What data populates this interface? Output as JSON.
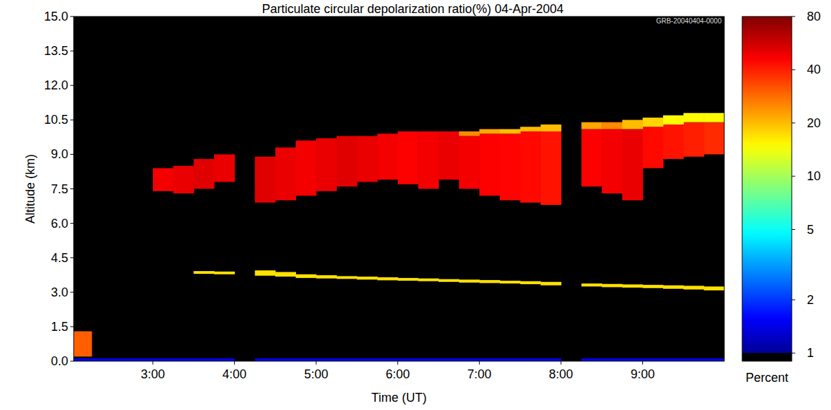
{
  "chart_data": {
    "type": "heatmap",
    "title": "Particulate circular depolarization ratio(%)  04-Apr-2004",
    "annotations": [
      "GRB-20040404-0000"
    ],
    "x_label": "Time (UT)",
    "y_label": "Altitude (km)",
    "xlim": [
      2.03,
      10.0
    ],
    "ylim": [
      0,
      15
    ],
    "xticks": [
      {
        "value": 3,
        "label": "3:00"
      },
      {
        "value": 4,
        "label": "4:00"
      },
      {
        "value": 5,
        "label": "5:00"
      },
      {
        "value": 6,
        "label": "6:00"
      },
      {
        "value": 7,
        "label": "7:00"
      },
      {
        "value": 8,
        "label": "8:00"
      },
      {
        "value": 9,
        "label": "9:00"
      }
    ],
    "yticks": [
      {
        "value": 0,
        "label": "0.0"
      },
      {
        "value": 1.5,
        "label": "1.5"
      },
      {
        "value": 3,
        "label": "3.0"
      },
      {
        "value": 4.5,
        "label": "4.5"
      },
      {
        "value": 6,
        "label": "6.0"
      },
      {
        "value": 7.5,
        "label": "7.5"
      },
      {
        "value": 9,
        "label": "9.0"
      },
      {
        "value": 10.5,
        "label": "10.5"
      },
      {
        "value": 12,
        "label": "12.0"
      },
      {
        "value": 13.5,
        "label": "13.5"
      },
      {
        "value": 15,
        "label": "15.0"
      }
    ],
    "grid": false,
    "log": true,
    "colorbar_range": [
      0.9,
      80
    ],
    "colorbar_ticks": [
      1,
      2,
      5,
      10,
      20,
      40,
      80
    ],
    "colorbar_label": "Percent",
    "x_bins": [
      2,
      2.25,
      2.5,
      2.75,
      3,
      3.25,
      3.5,
      3.75,
      4,
      4.25,
      4.5,
      4.75,
      5,
      5.25,
      5.5,
      5.75,
      6,
      6.25,
      6.5,
      6.75,
      7,
      7.25,
      7.5,
      7.75,
      8,
      8.25,
      8.5,
      8.75,
      9,
      9.25,
      9.5,
      9.75,
      10
    ],
    "layers": [
      {
        "base": [
          0,
          0,
          0,
          0,
          0,
          0,
          0,
          0,
          null,
          0,
          0,
          0,
          0,
          0,
          0,
          0,
          0,
          0,
          0,
          0,
          0,
          0,
          0,
          0,
          null,
          0,
          0,
          0,
          0,
          0,
          0,
          0
        ],
        "top": [
          0.12,
          0.12,
          0.12,
          0.12,
          0.12,
          0.12,
          0.12,
          0.12,
          null,
          0.12,
          0.12,
          0.12,
          0.12,
          0.12,
          0.12,
          0.12,
          0.12,
          0.12,
          0.12,
          0.12,
          0.12,
          0.12,
          0.12,
          0.12,
          null,
          0.12,
          0.12,
          0.12,
          0.12,
          0.12,
          0.12,
          0.12
        ],
        "values": [
          1.5,
          1.5,
          1.5,
          1.5,
          1.5,
          1.5,
          1.5,
          1.5,
          null,
          1.5,
          1.5,
          1.5,
          1.5,
          1.5,
          1.5,
          1.5,
          1.5,
          1.5,
          1.5,
          1.5,
          1.5,
          1.5,
          1.5,
          1.5,
          null,
          1.5,
          1.5,
          1.5,
          1.5,
          1.5,
          1.5,
          1.5
        ]
      },
      {
        "base": [
          0.2,
          null,
          null,
          null,
          null,
          null,
          null,
          null,
          null,
          null,
          null,
          null,
          null,
          null,
          null,
          null,
          null,
          null,
          null,
          null,
          null,
          null,
          null,
          null,
          null,
          null,
          null,
          null,
          null,
          null,
          null,
          null
        ],
        "top": [
          1.3,
          null,
          null,
          null,
          null,
          null,
          null,
          null,
          null,
          null,
          null,
          null,
          null,
          null,
          null,
          null,
          null,
          null,
          null,
          null,
          null,
          null,
          null,
          null,
          null,
          null,
          null,
          null,
          null,
          null,
          null,
          null
        ],
        "values": [
          30,
          null,
          null,
          null,
          null,
          null,
          null,
          null,
          null,
          null,
          null,
          null,
          null,
          null,
          null,
          null,
          null,
          null,
          null,
          null,
          null,
          null,
          null,
          null,
          null,
          null,
          null,
          null,
          null,
          null,
          null,
          null
        ]
      },
      {
        "base": [
          null,
          null,
          null,
          null,
          null,
          null,
          3.8,
          3.78,
          null,
          3.72,
          3.68,
          3.62,
          3.6,
          3.58,
          3.55,
          3.52,
          3.5,
          3.48,
          3.45,
          3.42,
          3.4,
          3.38,
          3.35,
          3.3,
          null,
          3.25,
          3.22,
          3.2,
          3.18,
          3.15,
          3.12,
          3.08
        ],
        "top": [
          null,
          null,
          null,
          null,
          null,
          null,
          3.92,
          3.9,
          null,
          3.95,
          3.88,
          3.78,
          3.74,
          3.7,
          3.68,
          3.65,
          3.62,
          3.6,
          3.57,
          3.55,
          3.53,
          3.5,
          3.48,
          3.45,
          null,
          3.38,
          3.36,
          3.34,
          3.32,
          3.3,
          3.28,
          3.25
        ],
        "values": [
          null,
          null,
          null,
          null,
          null,
          null,
          17,
          17,
          null,
          17,
          17,
          17,
          17,
          17,
          17,
          17,
          17,
          17,
          17,
          17,
          17,
          17,
          17,
          17,
          null,
          17,
          17,
          17,
          17,
          17,
          17,
          17
        ]
      },
      {
        "base": [
          null,
          null,
          null,
          null,
          7.4,
          7.3,
          7.5,
          7.8,
          null,
          6.9,
          7.0,
          7.2,
          7.4,
          7.6,
          7.8,
          7.9,
          7.7,
          7.5,
          7.9,
          7.5,
          7.2,
          7.0,
          6.9,
          6.8,
          null,
          7.6,
          7.3,
          7.0,
          8.4,
          8.8,
          8.9,
          9.0
        ],
        "top": [
          null,
          null,
          null,
          null,
          8.4,
          8.5,
          8.8,
          9.0,
          null,
          8.9,
          9.3,
          9.6,
          9.7,
          9.8,
          9.8,
          9.9,
          10.0,
          10.0,
          10.0,
          9.8,
          9.9,
          9.9,
          10.0,
          10.0,
          null,
          10.1,
          10.1,
          10.1,
          10.2,
          10.3,
          10.4,
          10.4
        ],
        "values": [
          null,
          null,
          null,
          null,
          48,
          50,
          52,
          50,
          null,
          52,
          50,
          48,
          50,
          52,
          50,
          48,
          46,
          48,
          50,
          48,
          46,
          45,
          44,
          42,
          null,
          46,
          48,
          50,
          44,
          42,
          40,
          38
        ]
      },
      {
        "base": [
          null,
          null,
          null,
          null,
          null,
          null,
          null,
          null,
          null,
          null,
          null,
          null,
          null,
          null,
          null,
          null,
          null,
          null,
          null,
          9.8,
          9.9,
          9.9,
          10.0,
          10.0,
          null,
          10.1,
          10.1,
          10.1,
          10.2,
          10.3,
          10.4,
          10.4
        ],
        "top": [
          null,
          null,
          null,
          null,
          null,
          null,
          null,
          null,
          null,
          null,
          null,
          null,
          null,
          null,
          null,
          null,
          null,
          null,
          null,
          10.0,
          10.1,
          10.1,
          10.2,
          10.3,
          null,
          10.4,
          10.4,
          10.5,
          10.6,
          10.7,
          10.8,
          10.8
        ],
        "values": [
          null,
          null,
          null,
          null,
          null,
          null,
          null,
          null,
          null,
          null,
          null,
          null,
          null,
          null,
          null,
          null,
          null,
          null,
          null,
          25,
          22,
          20,
          20,
          20,
          null,
          22,
          25,
          20,
          18,
          15,
          15,
          15
        ]
      }
    ]
  }
}
